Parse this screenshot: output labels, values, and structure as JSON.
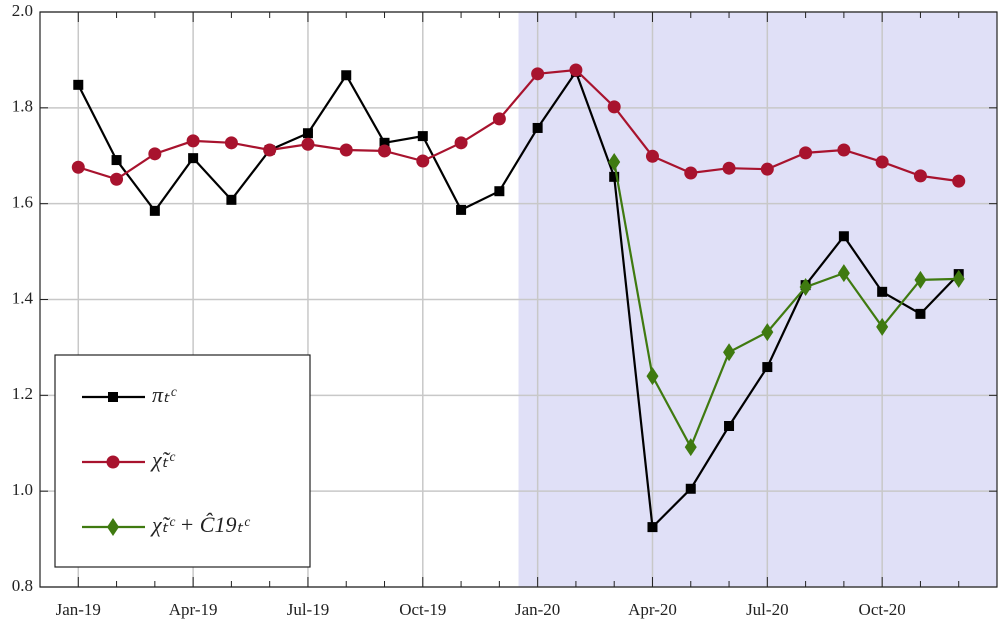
{
  "chart_data": {
    "type": "line",
    "categories": [
      "Jan-19",
      null,
      null,
      "Apr-19",
      null,
      null,
      "Jul-19",
      null,
      null,
      "Oct-19",
      null,
      null,
      "Jan-20",
      null,
      null,
      "Apr-20",
      null,
      null,
      "Jul-20",
      null,
      null,
      "Oct-20",
      null,
      null
    ],
    "series": [
      {
        "name": "πₜᶜ",
        "color": "#000000",
        "marker": "square",
        "values": [
          1.848,
          1.691,
          1.585,
          1.695,
          1.608,
          1.712,
          1.747,
          1.868,
          1.727,
          1.741,
          1.587,
          1.626,
          1.758,
          1.875,
          1.656,
          0.925,
          1.005,
          1.136,
          1.259,
          1.43,
          1.532,
          1.416,
          1.37,
          1.453
        ]
      },
      {
        "name": "χ̃ₜᶜ",
        "color": "#a8132e",
        "marker": "circle",
        "values": [
          1.676,
          1.651,
          1.704,
          1.731,
          1.727,
          1.712,
          1.724,
          1.712,
          1.71,
          1.689,
          1.727,
          1.777,
          1.871,
          1.879,
          1.802,
          1.699,
          1.664,
          1.674,
          1.672,
          1.706,
          1.712,
          1.687,
          1.658,
          1.647
        ]
      },
      {
        "name": "χ̃ₜᶜ + Ĉ19ₜᶜ",
        "color": "#3f7a10",
        "marker": "diamond",
        "values": [
          null,
          null,
          null,
          null,
          null,
          null,
          null,
          null,
          null,
          null,
          null,
          null,
          null,
          null,
          1.687,
          1.24,
          1.092,
          1.29,
          1.332,
          1.426,
          1.455,
          1.343,
          1.441,
          1.443
        ]
      }
    ],
    "ylim": [
      0.8,
      2
    ],
    "yticks": [
      0.8,
      {
        "value": 1,
        "label": "1.0"
      },
      1.2,
      1.4,
      1.6,
      1.8,
      {
        "value": 2,
        "label": "2.0"
      }
    ],
    "grid": true,
    "legend": "lower left",
    "shaded_region": {
      "start": 11.5,
      "color": "#e0e0f7"
    }
  }
}
